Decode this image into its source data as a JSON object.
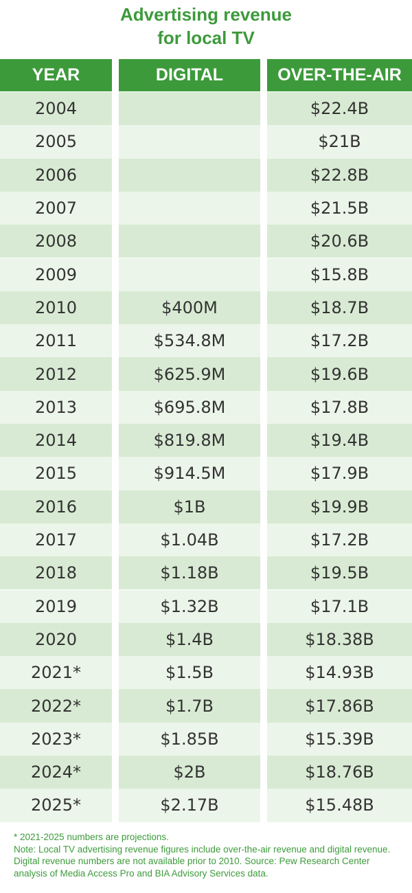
{
  "chart_data": {
    "type": "table",
    "title_line1": "Advertising revenue",
    "title_line2": "for local TV",
    "columns": [
      "YEAR",
      "DIGITAL",
      "OVER-THE-AIR"
    ],
    "rows": [
      {
        "year": "2004",
        "digital": "",
        "ota": "$22.4B"
      },
      {
        "year": "2005",
        "digital": "",
        "ota": "$21B"
      },
      {
        "year": "2006",
        "digital": "",
        "ota": "$22.8B"
      },
      {
        "year": "2007",
        "digital": "",
        "ota": "$21.5B"
      },
      {
        "year": "2008",
        "digital": "",
        "ota": "$20.6B"
      },
      {
        "year": "2009",
        "digital": "",
        "ota": "$15.8B"
      },
      {
        "year": "2010",
        "digital": "$400M",
        "ota": "$18.7B"
      },
      {
        "year": "2011",
        "digital": "$534.8M",
        "ota": "$17.2B"
      },
      {
        "year": "2012",
        "digital": "$625.9M",
        "ota": "$19.6B"
      },
      {
        "year": "2013",
        "digital": "$695.8M",
        "ota": "$17.8B"
      },
      {
        "year": "2014",
        "digital": "$819.8M",
        "ota": "$19.4B"
      },
      {
        "year": "2015",
        "digital": "$914.5M",
        "ota": "$17.9B"
      },
      {
        "year": "2016",
        "digital": "$1B",
        "ota": "$19.9B"
      },
      {
        "year": "2017",
        "digital": "$1.04B",
        "ota": "$17.2B"
      },
      {
        "year": "2018",
        "digital": "$1.18B",
        "ota": "$19.5B"
      },
      {
        "year": "2019",
        "digital": "$1.32B",
        "ota": "$17.1B"
      },
      {
        "year": "2020",
        "digital": "$1.4B",
        "ota": "$18.38B"
      },
      {
        "year": "2021*",
        "digital": "$1.5B",
        "ota": "$14.93B"
      },
      {
        "year": "2022*",
        "digital": "$1.7B",
        "ota": "$17.86B"
      },
      {
        "year": "2023*",
        "digital": "$1.85B",
        "ota": "$15.39B"
      },
      {
        "year": "2024*",
        "digital": "$2B",
        "ota": "$18.76B"
      },
      {
        "year": "2025*",
        "digital": "$2.17B",
        "ota": "$15.48B"
      }
    ]
  },
  "footnote": {
    "line1": "* 2021-2025 numbers are projections.",
    "line2": "Note: Local TV advertising revenue figures include over-the-air revenue and digital revenue. Digital revenue numbers are not available prior to 2010. Source: Pew Research Center analysis of Media Access Pro and BIA Advisory Services data."
  },
  "colors": {
    "accent": "#3d9a3b",
    "row_dark": "#d8ead3",
    "row_light": "#ecf5e9",
    "text": "#333333"
  }
}
